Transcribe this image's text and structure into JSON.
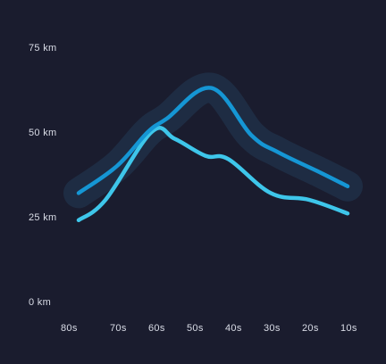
{
  "chart_data": {
    "type": "line",
    "title": "",
    "xlabel": "",
    "ylabel": "",
    "categories": [
      "80s",
      "70s",
      "60s",
      "50s",
      "40s",
      "30s",
      "20s",
      "10s"
    ],
    "y_tick_labels": [
      "0 km",
      "25 km",
      "50 km",
      "75 km"
    ],
    "y_tick_values": [
      0,
      25,
      50,
      75
    ],
    "ylim": [
      0,
      75
    ],
    "grid": false,
    "legend": "none",
    "series": [
      {
        "values": [
          32,
          40,
          50,
          54,
          63,
          49,
          44,
          38,
          34
        ],
        "x": [
          0,
          1,
          1.8,
          2.3,
          3.45,
          4.5,
          5.2,
          6.3,
          7
        ],
        "color": "#1596d4",
        "highlighted": true
      },
      {
        "values": [
          24,
          30,
          50,
          48,
          43,
          42,
          32,
          30,
          26
        ],
        "x": [
          0,
          0.7,
          1.9,
          2.5,
          3.3,
          3.9,
          5.0,
          6.0,
          7
        ],
        "color": "#3ec6ea",
        "highlighted": false
      }
    ],
    "colors": {
      "background": "#1a1c2e",
      "glow": "#233a55",
      "text": "#d9dce6"
    }
  }
}
